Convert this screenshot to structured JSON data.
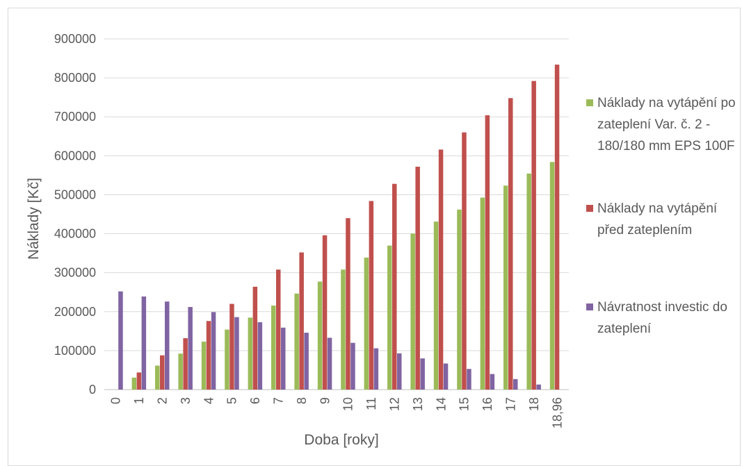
{
  "chart_data": {
    "type": "bar",
    "xlabel": "Doba [roky]",
    "ylabel": "Náklady [Kč]",
    "categories": [
      "0",
      "1",
      "2",
      "3",
      "4",
      "5",
      "6",
      "7",
      "8",
      "9",
      "10",
      "11",
      "12",
      "13",
      "14",
      "15",
      "16",
      "17",
      "18",
      "18,96"
    ],
    "ylim": [
      0,
      900000
    ],
    "yticks": [
      0,
      100000,
      200000,
      300000,
      400000,
      500000,
      600000,
      700000,
      800000,
      900000
    ],
    "grid": true,
    "legend_position": "right",
    "series": [
      {
        "name": "Náklady na vytápění po zateplení Var. č. 2 - 180/180 mm EPS 100F",
        "color": "#9bbb59",
        "values": [
          0,
          30800,
          61600,
          92400,
          123200,
          154000,
          184800,
          215600,
          246400,
          277200,
          308000,
          338800,
          369600,
          400400,
          431200,
          462000,
          492800,
          523600,
          554400,
          584000
        ]
      },
      {
        "name": "Náklady na vytápění před zateplením",
        "color": "#c0504d",
        "values": [
          0,
          44000,
          88000,
          132000,
          176000,
          220000,
          264000,
          308000,
          352000,
          396000,
          440000,
          484000,
          528000,
          572000,
          616000,
          660000,
          704000,
          748000,
          792000,
          834000
        ]
      },
      {
        "name": "Návratnost investic do zateplení",
        "color": "#8064a2",
        "values": [
          252000,
          239000,
          226000,
          212000,
          199000,
          186000,
          173000,
          159000,
          146000,
          133000,
          120000,
          106000,
          93000,
          80000,
          67000,
          53000,
          40000,
          27000,
          13000,
          0
        ]
      }
    ]
  }
}
